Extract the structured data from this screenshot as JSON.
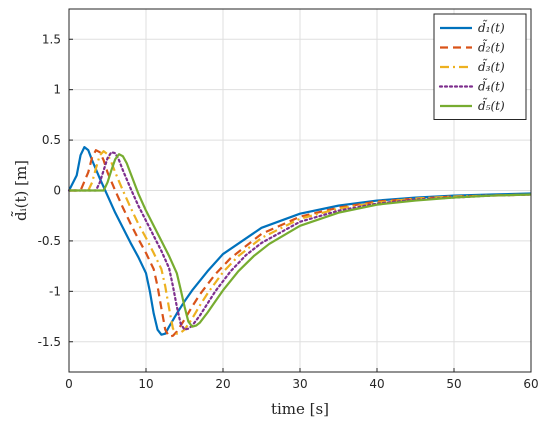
{
  "chart_data": {
    "type": "line",
    "xlabel": "time [s]",
    "ylabel": "d̃ᵢ(t) [m]",
    "xlim": [
      0,
      60
    ],
    "ylim": [
      -1.8,
      1.8
    ],
    "xticks": [
      0,
      10,
      20,
      30,
      40,
      50,
      60
    ],
    "yticks": [
      -1.5,
      -1,
      -0.5,
      0,
      0.5,
      1,
      1.5
    ],
    "xtick_labels": [
      "0",
      "10",
      "20",
      "30",
      "40",
      "50",
      "60"
    ],
    "ytick_labels": [
      "-1.5",
      "-1",
      "-0.5",
      "0",
      "0.5",
      "1",
      "1.5"
    ],
    "grid": true,
    "legend_position": "top-right",
    "series": [
      {
        "name": "d̃₁(t)",
        "color": "#0072BD",
        "dash": "solid",
        "x": [
          0,
          1,
          1.5,
          2,
          2.5,
          3,
          4,
          5,
          6,
          7,
          8,
          9,
          10,
          10.5,
          11,
          11.5,
          12,
          12.5,
          13,
          14,
          15,
          16,
          18,
          20,
          25,
          30,
          35,
          40,
          45,
          50,
          55,
          60
        ],
        "y": [
          0,
          0.15,
          0.35,
          0.43,
          0.4,
          0.3,
          0.12,
          -0.05,
          -0.22,
          -0.37,
          -0.52,
          -0.66,
          -0.82,
          -1.0,
          -1.22,
          -1.38,
          -1.43,
          -1.42,
          -1.35,
          -1.22,
          -1.1,
          -0.99,
          -0.8,
          -0.63,
          -0.37,
          -0.23,
          -0.15,
          -0.1,
          -0.07,
          -0.05,
          -0.04,
          -0.03
        ]
      },
      {
        "name": "d̃₂(t)",
        "color": "#D95319",
        "dash": "dashed",
        "x": [
          0,
          1.5,
          2.5,
          3,
          3.5,
          4,
          4.5,
          5,
          6,
          7,
          8,
          9,
          10,
          11,
          11.5,
          12,
          12.5,
          13,
          13.5,
          14,
          15,
          16,
          17,
          19,
          21,
          25,
          30,
          35,
          40,
          45,
          50,
          55,
          60
        ],
        "y": [
          0,
          0,
          0.18,
          0.33,
          0.4,
          0.38,
          0.3,
          0.18,
          0.0,
          -0.17,
          -0.33,
          -0.48,
          -0.62,
          -0.78,
          -0.95,
          -1.17,
          -1.38,
          -1.45,
          -1.44,
          -1.4,
          -1.28,
          -1.15,
          -1.03,
          -0.83,
          -0.67,
          -0.43,
          -0.26,
          -0.17,
          -0.11,
          -0.08,
          -0.06,
          -0.05,
          -0.04
        ]
      },
      {
        "name": "d̃₃(t)",
        "color": "#EDB120",
        "dash": "dashdot",
        "x": [
          0,
          2.5,
          3,
          3.5,
          4,
          4.5,
          5,
          5.5,
          6,
          7,
          8,
          9,
          10,
          11,
          12,
          12.5,
          13,
          13.5,
          14,
          14.5,
          15,
          16,
          17,
          18,
          20,
          22,
          25,
          30,
          35,
          40,
          45,
          50,
          55,
          60
        ],
        "y": [
          0,
          0,
          0.08,
          0.22,
          0.35,
          0.39,
          0.36,
          0.28,
          0.18,
          0.0,
          -0.17,
          -0.33,
          -0.47,
          -0.62,
          -0.78,
          -0.95,
          -1.17,
          -1.37,
          -1.42,
          -1.41,
          -1.38,
          -1.27,
          -1.14,
          -1.02,
          -0.81,
          -0.65,
          -0.47,
          -0.28,
          -0.18,
          -0.12,
          -0.08,
          -0.06,
          -0.05,
          -0.04
        ]
      },
      {
        "name": "d̃₄(t)",
        "color": "#7E2F8E",
        "dash": "dotted",
        "x": [
          0,
          3.5,
          4,
          4.5,
          5,
          5.5,
          6,
          6.5,
          7,
          8,
          9,
          10,
          11,
          12,
          13,
          13.5,
          14,
          14.5,
          15,
          15.5,
          16,
          17,
          18,
          19,
          21,
          23,
          25,
          30,
          35,
          40,
          45,
          50,
          55,
          60
        ],
        "y": [
          0,
          0,
          0.08,
          0.2,
          0.32,
          0.38,
          0.37,
          0.3,
          0.2,
          0.02,
          -0.15,
          -0.3,
          -0.45,
          -0.6,
          -0.77,
          -0.95,
          -1.15,
          -1.32,
          -1.38,
          -1.37,
          -1.34,
          -1.24,
          -1.12,
          -1.0,
          -0.8,
          -0.64,
          -0.52,
          -0.31,
          -0.2,
          -0.13,
          -0.09,
          -0.07,
          -0.05,
          -0.04
        ]
      },
      {
        "name": "d̃₅(t)",
        "color": "#77AC30",
        "dash": "solid",
        "x": [
          0,
          4.5,
          5,
          5.5,
          6,
          6.5,
          7,
          7.5,
          8,
          9,
          10,
          11,
          12,
          13,
          14,
          14.5,
          15,
          15.5,
          16,
          16.5,
          17,
          18,
          19,
          20,
          22,
          24,
          26,
          30,
          35,
          40,
          45,
          50,
          55,
          60
        ],
        "y": [
          0,
          0,
          0.08,
          0.2,
          0.31,
          0.36,
          0.34,
          0.27,
          0.17,
          -0.03,
          -0.2,
          -0.35,
          -0.5,
          -0.65,
          -0.82,
          -0.98,
          -1.15,
          -1.3,
          -1.35,
          -1.34,
          -1.31,
          -1.21,
          -1.1,
          -0.99,
          -0.8,
          -0.65,
          -0.53,
          -0.35,
          -0.22,
          -0.14,
          -0.1,
          -0.07,
          -0.05,
          -0.04
        ]
      }
    ]
  }
}
